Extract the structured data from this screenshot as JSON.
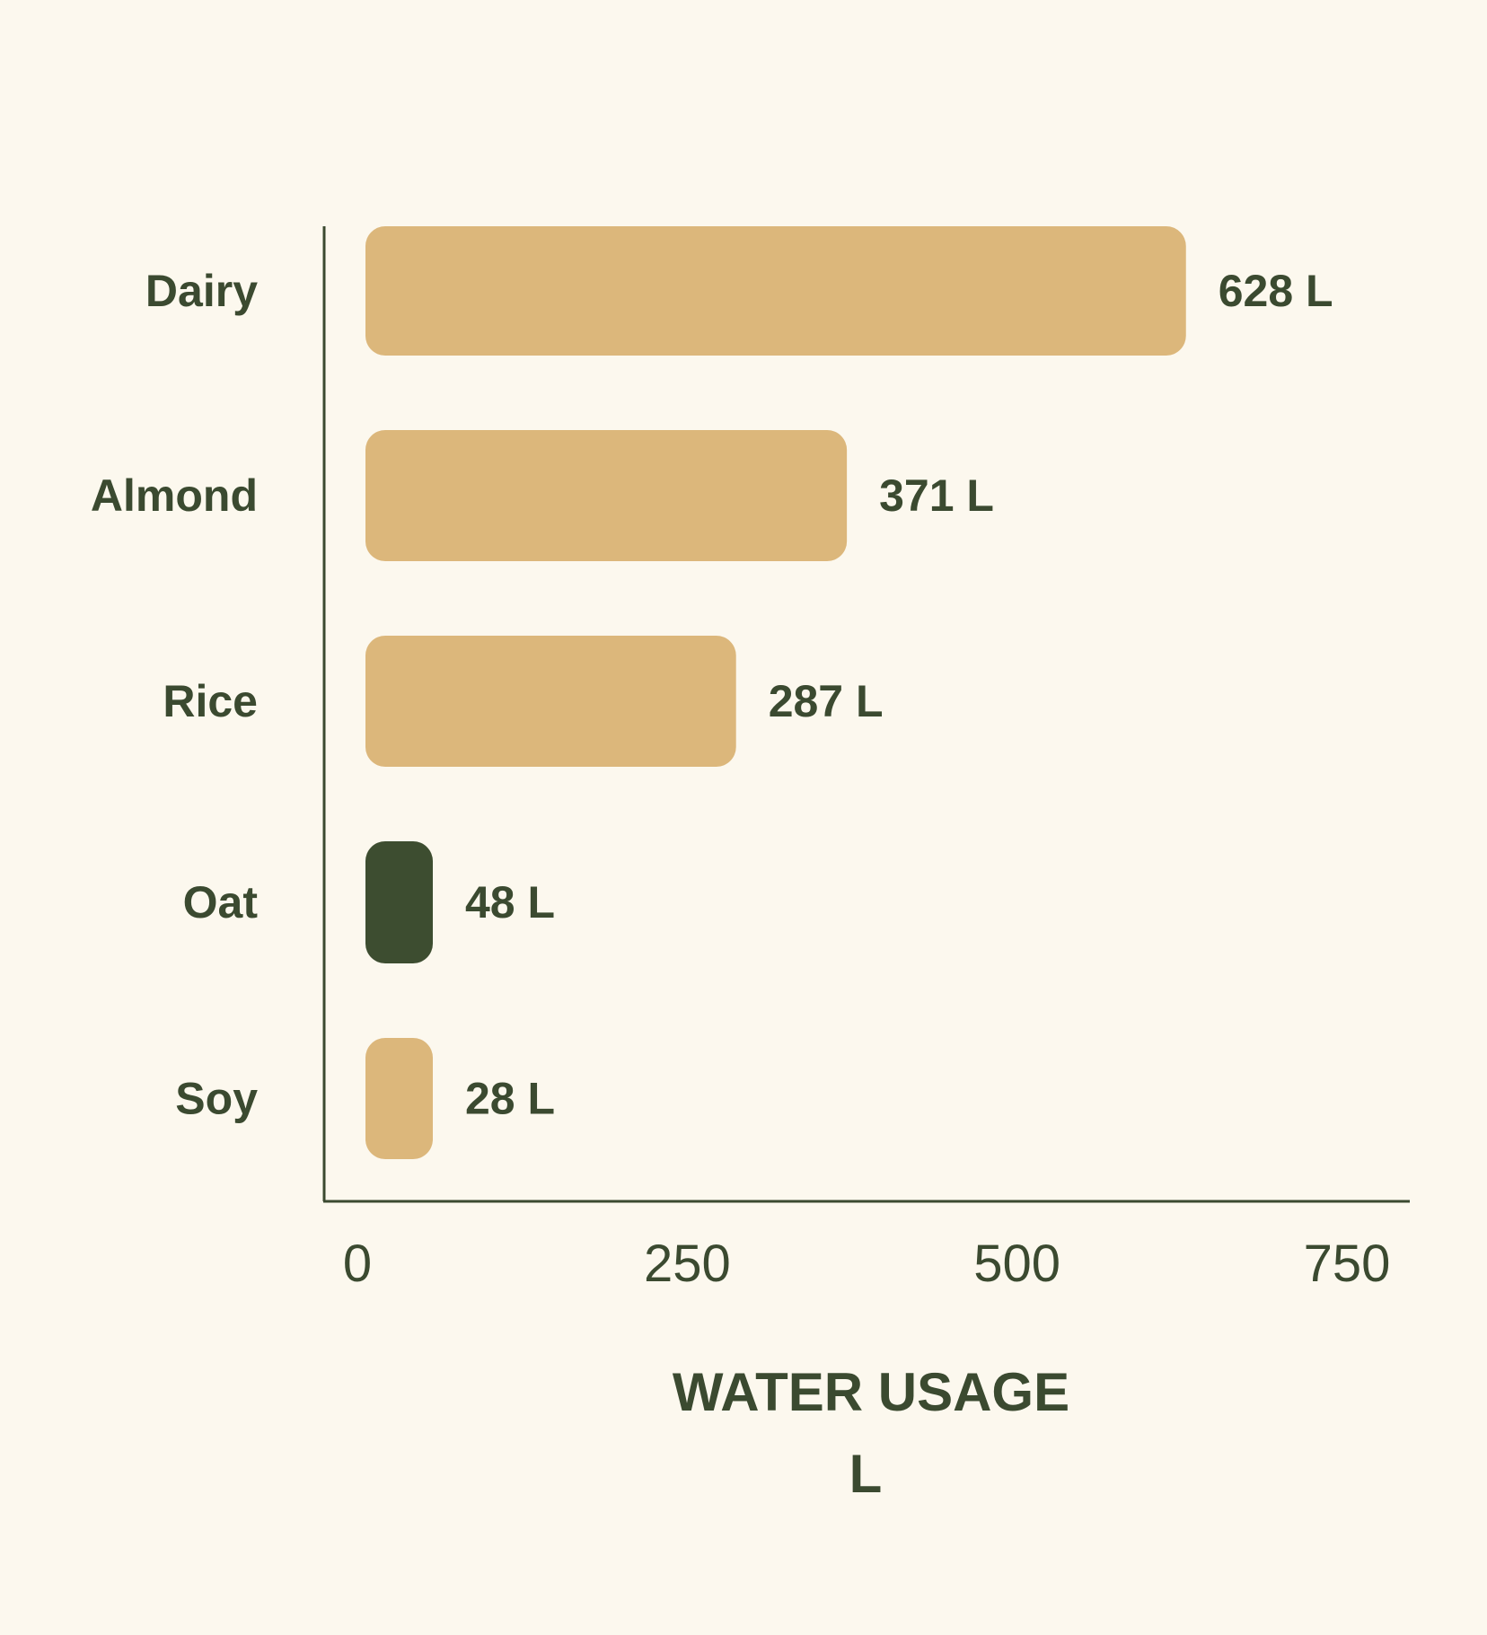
{
  "chart_data": {
    "type": "bar",
    "orientation": "horizontal",
    "categories": [
      "Dairy",
      "Almond",
      "Rice",
      "Oat",
      "Soy"
    ],
    "values": [
      628,
      371,
      287,
      48,
      28
    ],
    "data_labels": [
      "628 L",
      "371 L",
      "287 L",
      "48 L",
      "28 L"
    ],
    "highlight": "Oat",
    "xlabel": "WATER USAGE",
    "xunit": "L",
    "xlim": [
      0,
      750
    ],
    "xticks": [
      "0",
      "250",
      "500",
      "750"
    ],
    "grid": false,
    "colors": {
      "background": "#fcf8ee",
      "bar": "#dcb77b",
      "highlight_bar": "#3d4d30",
      "text": "#3b4a30",
      "axis": "#3b4a30"
    }
  }
}
